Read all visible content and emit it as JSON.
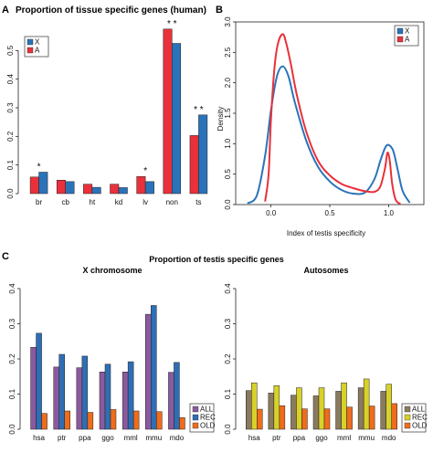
{
  "panel_labels": {
    "a": "A",
    "b": "B",
    "c": "C"
  },
  "section_title": "Proportion of testis specific genes",
  "colors": {
    "X": "#2b73b9",
    "A": "#e8313a",
    "ALL": "#8a5a9e",
    "REC_x": "#2e6eb5",
    "OLD": "#ef6c1c",
    "ALL_auto": "#8a7a5e",
    "REC_auto": "#d7d12a"
  },
  "chart_data": [
    {
      "id": "A",
      "type": "bar",
      "title": "Proportion of tissue specific genes (human)",
      "categories": [
        "br",
        "cb",
        "ht",
        "kd",
        "lv",
        "non",
        "ts"
      ],
      "series": [
        {
          "name": "A",
          "values": [
            0.058,
            0.047,
            0.033,
            0.033,
            0.06,
            0.575,
            0.203
          ]
        },
        {
          "name": "X",
          "values": [
            0.075,
            0.042,
            0.022,
            0.021,
            0.042,
            0.525,
            0.275
          ]
        }
      ],
      "stars": [
        "*",
        "",
        "",
        "",
        "*",
        "* *",
        "* *"
      ],
      "ylim": [
        0,
        0.6
      ],
      "yticks": [
        "0.0",
        "0.1",
        "0.2",
        "0.3",
        "0.4",
        "0.5"
      ],
      "legend_order": [
        "X",
        "A"
      ],
      "legend_placement": "top-left"
    },
    {
      "id": "B",
      "type": "line",
      "xlabel": "Index of testis specificity",
      "ylabel": "Density",
      "xlim": [
        -0.3,
        1.3
      ],
      "ylim": [
        0,
        3.0
      ],
      "xticks": [
        "0.0",
        "0.5",
        "1.0"
      ],
      "yticks": [
        "0.0",
        "0.5",
        "1.0",
        "1.5",
        "2.0",
        "2.5",
        "3.0"
      ],
      "legend_order": [
        "X",
        "A"
      ],
      "legend_placement": "top-right",
      "series": [
        {
          "name": "X",
          "x": [
            -0.2,
            -0.12,
            -0.05,
            0.0,
            0.05,
            0.1,
            0.15,
            0.2,
            0.3,
            0.4,
            0.5,
            0.6,
            0.7,
            0.8,
            0.88,
            0.93,
            0.97,
            1.0,
            1.04,
            1.08,
            1.12,
            1.18
          ],
          "y": [
            0.02,
            0.15,
            0.8,
            1.55,
            2.1,
            2.27,
            2.1,
            1.7,
            1.05,
            0.62,
            0.38,
            0.24,
            0.18,
            0.2,
            0.42,
            0.72,
            0.93,
            0.98,
            0.88,
            0.55,
            0.22,
            0.03
          ]
        },
        {
          "name": "A",
          "x": [
            -0.05,
            -0.02,
            0.0,
            0.03,
            0.06,
            0.1,
            0.13,
            0.17,
            0.22,
            0.3,
            0.4,
            0.5,
            0.6,
            0.7,
            0.8,
            0.88,
            0.93,
            0.97,
            0.99,
            1.01,
            1.03,
            1.06,
            1.1
          ],
          "y": [
            0.05,
            0.5,
            1.4,
            2.25,
            2.65,
            2.8,
            2.65,
            2.3,
            1.8,
            1.2,
            0.72,
            0.48,
            0.34,
            0.27,
            0.22,
            0.21,
            0.3,
            0.6,
            0.85,
            0.72,
            0.35,
            0.08,
            0.01
          ]
        }
      ]
    },
    {
      "id": "C1",
      "type": "bar",
      "title": "X chromosome",
      "categories": [
        "hsa",
        "ptr",
        "ppa",
        "ggo",
        "mml",
        "mmu",
        "mdo"
      ],
      "series": [
        {
          "name": "ALL",
          "values": [
            0.233,
            0.177,
            0.175,
            0.163,
            0.163,
            0.327,
            0.162
          ]
        },
        {
          "name": "REC",
          "values": [
            0.273,
            0.213,
            0.208,
            0.185,
            0.192,
            0.352,
            0.19
          ]
        },
        {
          "name": "OLD",
          "values": [
            0.045,
            0.052,
            0.048,
            0.056,
            0.052,
            0.05,
            0.033
          ]
        }
      ],
      "ylim": [
        0,
        0.4
      ],
      "yticks": [
        "0.0",
        "0.1",
        "0.2",
        "0.3",
        "0.4"
      ],
      "legend_order": [
        "ALL",
        "REC",
        "OLD"
      ],
      "legend_placement": "bottom-right"
    },
    {
      "id": "C2",
      "type": "bar",
      "title": "Autosomes",
      "categories": [
        "hsa",
        "ptr",
        "ppa",
        "ggo",
        "mml",
        "mmu",
        "mdo"
      ],
      "series": [
        {
          "name": "ALL",
          "values": [
            0.11,
            0.103,
            0.097,
            0.095,
            0.108,
            0.118,
            0.108
          ]
        },
        {
          "name": "REC",
          "values": [
            0.132,
            0.124,
            0.118,
            0.118,
            0.132,
            0.143,
            0.128
          ]
        },
        {
          "name": "OLD",
          "values": [
            0.057,
            0.067,
            0.058,
            0.058,
            0.063,
            0.066,
            0.073
          ]
        }
      ],
      "ylim": [
        0,
        0.4
      ],
      "yticks": [
        "0.0",
        "0.1",
        "0.2",
        "0.3",
        "0.4"
      ],
      "legend_order": [
        "ALL",
        "REC",
        "OLD"
      ],
      "legend_placement": "bottom-right"
    }
  ]
}
